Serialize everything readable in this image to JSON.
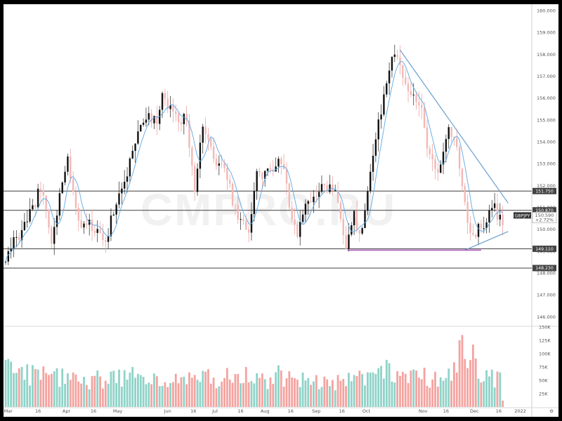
{
  "chart_data": {
    "type": "candlestick",
    "symbol": "GBPJPY",
    "last_price": "150.590",
    "change_pct": "+2.72%",
    "watermark": "CMPRO.RU",
    "y_axis": {
      "range": [
        145.6,
        160.1
      ],
      "ticks": [
        "160.000",
        "159.000",
        "158.000",
        "157.000",
        "156.000",
        "155.000",
        "154.000",
        "153.000",
        "152.000",
        "151.000",
        "150.000",
        "149.000",
        "148.000",
        "147.000",
        "146.000"
      ]
    },
    "volume_axis": {
      "range": [
        0,
        150000
      ],
      "ticks": [
        {
          "v": 150000,
          "label": "150K"
        },
        {
          "v": 125000,
          "label": "125K"
        },
        {
          "v": 100000,
          "label": "100K"
        },
        {
          "v": 75000,
          "label": "75K"
        },
        {
          "v": 50000,
          "label": "50K"
        },
        {
          "v": 25000,
          "label": "25K"
        }
      ]
    },
    "x_axis": {
      "labels": [
        {
          "i": 2,
          "label": "Mar"
        },
        {
          "i": 24,
          "label": "16"
        },
        {
          "i": 45,
          "label": "Apr"
        },
        {
          "i": 65,
          "label": "16"
        },
        {
          "i": 83,
          "label": "May"
        },
        {
          "i": 120,
          "label": "Jun"
        },
        {
          "i": 139,
          "label": "16"
        },
        {
          "i": 155,
          "label": "Jul"
        },
        {
          "i": 174,
          "label": "16"
        },
        {
          "i": 192,
          "label": "Aug"
        },
        {
          "i": 211,
          "label": "16"
        },
        {
          "i": 230,
          "label": "Sep"
        },
        {
          "i": 249,
          "label": "16"
        },
        {
          "i": 267,
          "label": "Oct"
        },
        {
          "i": 309,
          "label": "Nov"
        },
        {
          "i": 326,
          "label": "16"
        },
        {
          "i": 347,
          "label": "Dec"
        },
        {
          "i": 365,
          "label": "16"
        },
        {
          "i": 381,
          "label": "2022"
        }
      ],
      "n_slots": 390
    },
    "levels": [
      {
        "value": 151.75,
        "label": "151.750"
      },
      {
        "value": 150.87,
        "label": "150.870"
      },
      {
        "value": 149.11,
        "label": "149.110"
      },
      {
        "value": 148.23,
        "label": "148.230"
      }
    ],
    "trendlines": [
      {
        "from": [
          292,
          158.2
        ],
        "to": [
          372,
          151.2
        ],
        "color": "#6a9fd0"
      },
      {
        "from": [
          340,
          149.05
        ],
        "to": [
          372,
          149.9
        ],
        "color": "#6a9fd0"
      },
      {
        "from": [
          253,
          149.05
        ],
        "to": [
          352,
          149.05
        ],
        "color": "#9c27b0"
      }
    ],
    "series_anchors": [
      [
        0,
        148.7
      ],
      [
        6,
        149.5
      ],
      [
        12,
        149.9
      ],
      [
        20,
        150.9
      ],
      [
        25,
        151.8
      ],
      [
        30,
        151.0
      ],
      [
        34,
        149.3
      ],
      [
        40,
        151.5
      ],
      [
        46,
        153.2
      ],
      [
        50,
        151.5
      ],
      [
        56,
        150.2
      ],
      [
        62,
        150.2
      ],
      [
        68,
        150.0
      ],
      [
        74,
        149.3
      ],
      [
        80,
        150.9
      ],
      [
        86,
        151.8
      ],
      [
        92,
        153.0
      ],
      [
        98,
        154.5
      ],
      [
        105,
        155.3
      ],
      [
        112,
        154.8
      ],
      [
        116,
        156.0
      ],
      [
        122,
        155.4
      ],
      [
        128,
        155.0
      ],
      [
        134,
        155.1
      ],
      [
        140,
        151.8
      ],
      [
        145,
        154.8
      ],
      [
        150,
        154.2
      ],
      [
        156,
        153.0
      ],
      [
        162,
        153.0
      ],
      [
        168,
        151.3
      ],
      [
        174,
        150.3
      ],
      [
        180,
        150.0
      ],
      [
        186,
        152.5
      ],
      [
        192,
        152.6
      ],
      [
        198,
        152.6
      ],
      [
        204,
        153.2
      ],
      [
        210,
        151.2
      ],
      [
        216,
        149.7
      ],
      [
        222,
        150.9
      ],
      [
        228,
        151.5
      ],
      [
        234,
        151.9
      ],
      [
        240,
        151.8
      ],
      [
        246,
        151.4
      ],
      [
        252,
        149.1
      ],
      [
        257,
        150.8
      ],
      [
        262,
        149.7
      ],
      [
        266,
        150.8
      ],
      [
        272,
        153.6
      ],
      [
        278,
        155.5
      ],
      [
        283,
        157.0
      ],
      [
        288,
        158.1
      ],
      [
        293,
        157.3
      ],
      [
        298,
        156.2
      ],
      [
        303,
        156.0
      ],
      [
        308,
        155.3
      ],
      [
        313,
        153.5
      ],
      [
        318,
        152.6
      ],
      [
        322,
        153.0
      ],
      [
        327,
        154.6
      ],
      [
        332,
        154.2
      ],
      [
        336,
        153.0
      ],
      [
        339,
        151.5
      ],
      [
        342,
        150.4
      ],
      [
        346,
        149.5
      ],
      [
        350,
        150.2
      ],
      [
        354,
        149.9
      ],
      [
        358,
        150.9
      ],
      [
        361,
        151.2
      ],
      [
        364,
        150.7
      ],
      [
        368,
        150.1
      ]
    ],
    "volume_anchors": [
      [
        0,
        55000
      ],
      [
        20,
        60000
      ],
      [
        40,
        55000
      ],
      [
        60,
        50000
      ],
      [
        80,
        55000
      ],
      [
        100,
        55000
      ],
      [
        120,
        52000
      ],
      [
        140,
        55000
      ],
      [
        160,
        50000
      ],
      [
        180,
        50000
      ],
      [
        200,
        52000
      ],
      [
        220,
        48000
      ],
      [
        240,
        42000
      ],
      [
        260,
        50000
      ],
      [
        270,
        62000
      ],
      [
        285,
        68000
      ],
      [
        300,
        55000
      ],
      [
        315,
        55000
      ],
      [
        330,
        62000
      ],
      [
        338,
        80000
      ],
      [
        345,
        95000
      ],
      [
        352,
        62000
      ],
      [
        360,
        55000
      ],
      [
        368,
        58000
      ]
    ],
    "volume_highlights": [
      [
        0,
        88000
      ],
      [
        3,
        90000
      ],
      [
        5,
        85000
      ],
      [
        17,
        80000
      ],
      [
        32,
        60000
      ],
      [
        42,
        72000
      ],
      [
        85,
        70000
      ],
      [
        95,
        75000
      ],
      [
        140,
        60000
      ],
      [
        165,
        73000
      ],
      [
        178,
        75000
      ],
      [
        202,
        78000
      ],
      [
        246,
        60000
      ],
      [
        262,
        68000
      ],
      [
        269,
        65000
      ],
      [
        275,
        62000
      ],
      [
        294,
        66000
      ],
      [
        318,
        66000
      ],
      [
        328,
        72000
      ],
      [
        337,
        125000
      ],
      [
        339,
        135000
      ],
      [
        341,
        90000
      ],
      [
        344,
        88000
      ],
      [
        361,
        70000
      ],
      [
        366,
        65000
      ],
      [
        369,
        12000
      ]
    ],
    "colors": {
      "up": "#26a69a",
      "down": "#ef5350",
      "candle_body": "#111111",
      "ma_line": "#5aa9e6",
      "level_line": "#555555",
      "level_label_bg": "#444444",
      "symbol_label_bg": "#333333",
      "vol_up": "#8fd3c8",
      "vol_down": "#f4a3a0"
    }
  }
}
